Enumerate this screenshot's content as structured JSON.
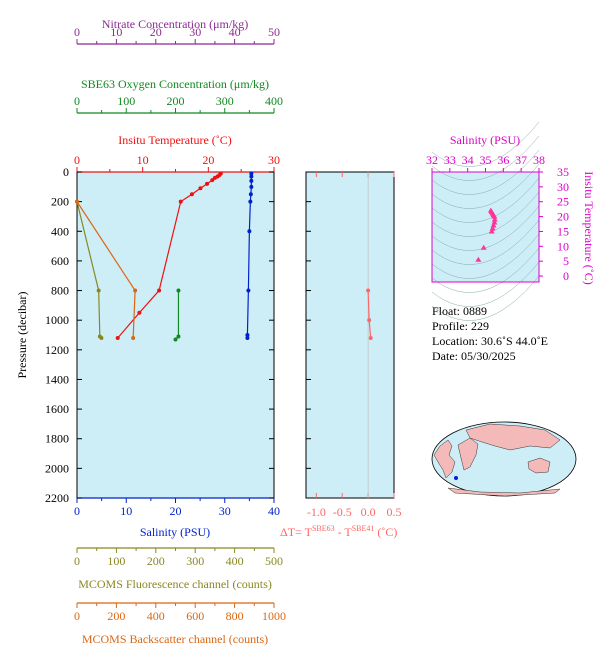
{
  "colors": {
    "nitrate": "#8b2b93",
    "oxygen": "#118822",
    "temperature": "#ee1111",
    "salinity": "#0022cc",
    "fluorescence": "#888822",
    "backscatter": "#dd6611",
    "delta_t": "#ff6666",
    "plot_bg": "#cdeef7",
    "ts_axis": "#dd00cc"
  },
  "axes": {
    "nitrate": {
      "label": "Nitrate Concentration (μm/kg)",
      "ticks": [
        "0",
        "10",
        "20",
        "30",
        "40",
        "50"
      ]
    },
    "oxygen": {
      "label": "SBE63 Oxygen Concentration (μm/kg)",
      "ticks": [
        "0",
        "100",
        "200",
        "300",
        "400"
      ]
    },
    "temperature": {
      "label": "Insitu Temperature (˚C)",
      "ticks": [
        "0",
        "10",
        "20",
        "30"
      ]
    },
    "pressure": {
      "label": "Pressure (decibar)",
      "ticks": [
        "0",
        "200",
        "400",
        "600",
        "800",
        "1000",
        "1200",
        "1400",
        "1600",
        "1800",
        "2000",
        "2200"
      ]
    },
    "salinity": {
      "label": "Salinity (PSU)",
      "ticks": [
        "0",
        "10",
        "20",
        "30",
        "40"
      ]
    },
    "fluorescence": {
      "label": "MCOMS Fluorescence channel (counts)",
      "ticks": [
        "0",
        "100",
        "200",
        "300",
        "400",
        "500"
      ]
    },
    "backscatter": {
      "label": "MCOMS Backscatter channel (counts)",
      "ticks": [
        "0",
        "200",
        "400",
        "600",
        "800",
        "1000"
      ]
    },
    "delta_t": {
      "label_main": "ΔT= T",
      "sup1": "SBE63",
      "label_mid": " - T",
      "sup2": "SBE41",
      "label_end": " (˚C)",
      "ticks": [
        "-1.0",
        "-0.5",
        "0.0",
        "0.5"
      ]
    },
    "ts_salinity": {
      "label": "Salinity (PSU)",
      "ticks": [
        "32",
        "33",
        "34",
        "35",
        "36",
        "37",
        "38"
      ]
    },
    "ts_temperature": {
      "label": "Insitu Temperature (˚C)",
      "ticks": [
        "0",
        "5",
        "10",
        "15",
        "20",
        "25",
        "30",
        "35"
      ]
    }
  },
  "float_info": {
    "float": "Float:  0889",
    "profile": "Profile:  229",
    "location": "Location:  30.6˚S  44.0˚E",
    "date": "Date:  05/30/2025"
  },
  "chart_data": [
    {
      "type": "line",
      "name": "profile",
      "ylabel": "Pressure (decibar)",
      "ylim": [
        2200,
        0
      ],
      "series": [
        {
          "name": "Insitu Temperature",
          "xlim": [
            0,
            30
          ],
          "x": [
            6.2,
            9.5,
            12.5,
            15.8,
            17.5,
            18.8,
            19.8,
            20.6,
            21.0,
            21.4,
            21.7,
            21.9
          ],
          "y": [
            1120,
            950,
            800,
            200,
            150,
            110,
            80,
            55,
            40,
            30,
            20,
            10
          ]
        },
        {
          "name": "Salinity",
          "xlim": [
            0,
            40
          ],
          "x": [
            34.6,
            34.6,
            34.8,
            35.0,
            35.2,
            35.3,
            35.4,
            35.4,
            35.4,
            35.4
          ],
          "y": [
            1120,
            1100,
            800,
            400,
            200,
            150,
            100,
            60,
            30,
            10
          ]
        },
        {
          "name": "SBE63 Oxygen Concentration",
          "xlim": [
            0,
            400
          ],
          "x": [
            200,
            206,
            206
          ],
          "y": [
            1130,
            1110,
            800
          ]
        },
        {
          "name": "MCOMS Fluorescence channel",
          "xlim": [
            0,
            500
          ],
          "x": [
            0,
            55,
            58,
            62
          ],
          "y": [
            200,
            800,
            1110,
            1120
          ]
        },
        {
          "name": "MCOMS Backscatter channel",
          "xlim": [
            0,
            1000
          ],
          "x": [
            0,
            295,
            285
          ],
          "y": [
            200,
            800,
            1120
          ]
        }
      ]
    },
    {
      "type": "line",
      "name": "delta_t",
      "xlim": [
        -1.2,
        0.5
      ],
      "ylim": [
        2200,
        0
      ],
      "series": [
        {
          "name": "ΔT",
          "x": [
            0.0,
            0.02,
            0.05
          ],
          "y": [
            800,
            1000,
            1120
          ]
        }
      ]
    },
    {
      "type": "scatter",
      "name": "ts_diagram",
      "xlim": [
        32,
        38
      ],
      "ylim": [
        -2,
        35
      ],
      "series": [
        {
          "name": "T-S",
          "x": [
            35.3,
            35.35,
            35.4,
            35.45,
            35.5,
            35.52,
            35.5,
            35.45,
            35.4,
            35.35,
            34.9,
            34.6
          ],
          "y": [
            22,
            21.5,
            21,
            20.5,
            20,
            19,
            18,
            17,
            16,
            15,
            9.5,
            5.5
          ]
        }
      ]
    }
  ]
}
